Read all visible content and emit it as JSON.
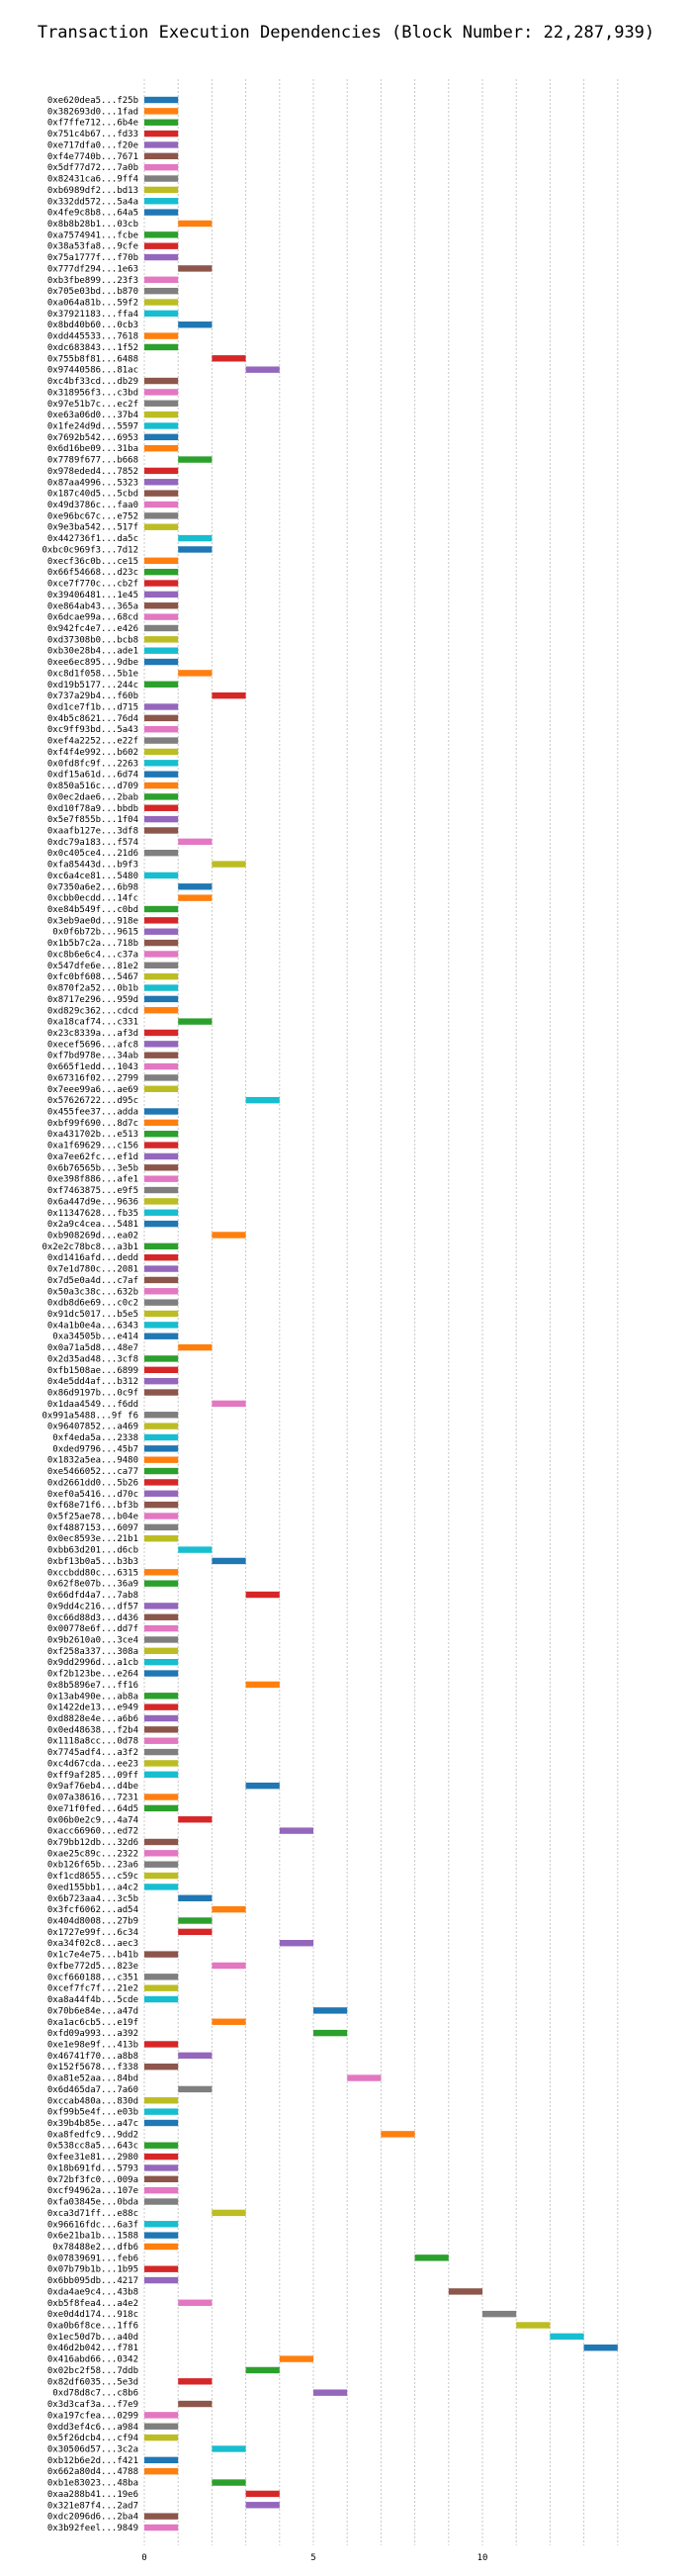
{
  "chart_data": {
    "type": "bar",
    "orientation": "horizontal",
    "title": "Transaction Execution Dependencies (Block Number: 22,287,939)",
    "xlabel": "",
    "ylabel": "",
    "xlim": [
      0,
      14.5
    ],
    "xticks": [
      0,
      5,
      10
    ],
    "grid": "vertical dotted lines at every integer",
    "legend": "none",
    "palette": [
      "#1f77b4",
      "#ff7f0e",
      "#2ca02c",
      "#d62728",
      "#9467bd",
      "#8c564b",
      "#e377c2",
      "#7f7f7f",
      "#bcbd22",
      "#17becf"
    ],
    "rows": [
      [
        "0xe620dea5...f25b",
        0
      ],
      [
        "0x382693d0...1fad",
        0
      ],
      [
        "0xf7ffe712...6b4e",
        0
      ],
      [
        "0x751c4b67...fd33",
        0
      ],
      [
        "0xe717dfa0...f20e",
        0
      ],
      [
        "0xf4e7740b...7671",
        0
      ],
      [
        "0x5df77d72...7a0b",
        0
      ],
      [
        "0x82431ca6...9ff4",
        0
      ],
      [
        "0xb6989df2...bd13",
        0
      ],
      [
        "0x332dd572...5a4a",
        0
      ],
      [
        "0x4fe9c8b8...64a5",
        0
      ],
      [
        "0x8b8b28b1...03cb",
        1
      ],
      [
        "0xa7574941...fcbe",
        0
      ],
      [
        "0x38a53fa8...9cfe",
        0
      ],
      [
        "0x75a1777f...f70b",
        0
      ],
      [
        "0x777df294...1e63",
        1
      ],
      [
        "0xb3fbe899...23f3",
        0
      ],
      [
        "0x705e03bd...b870",
        0
      ],
      [
        "0xa064a81b...59f2",
        0
      ],
      [
        "0x37921183...ffa4",
        0
      ],
      [
        "0x8bd40b60...0cb3",
        1
      ],
      [
        "0xdd445533...7618",
        0
      ],
      [
        "0xdc683843...1f52",
        0
      ],
      [
        "0x755b8f81...6488",
        2
      ],
      [
        "0x97440586...81ac",
        3
      ],
      [
        "0xc4bf33cd...db29",
        0
      ],
      [
        "0x318956f3...c3bd",
        0
      ],
      [
        "0x97e51b7c...ec2f",
        0
      ],
      [
        "0xe63a06d0...37b4",
        0
      ],
      [
        "0x1fe24d9d...5597",
        0
      ],
      [
        "0x7692b542...6953",
        0
      ],
      [
        "0x6d16be09...31ba",
        0
      ],
      [
        "0x7789f677...b668",
        1
      ],
      [
        "0x978eded4...7852",
        0
      ],
      [
        "0x87aa4996...5323",
        0
      ],
      [
        "0x187c40d5...5cbd",
        0
      ],
      [
        "0x49d3786c...faa0",
        0
      ],
      [
        "0xe96bc67c...e752",
        0
      ],
      [
        "0x9e3ba542...517f",
        0
      ],
      [
        "0x442736f1...da5c",
        1
      ],
      [
        "0xbc0c969f3...7d12",
        1
      ],
      [
        "0xecf36c0b...ce15",
        0
      ],
      [
        "0x66f54668...d23c",
        0
      ],
      [
        "0xce7f770c...cb2f",
        0
      ],
      [
        "0x39406481...1e45",
        0
      ],
      [
        "0xe864ab43...365a",
        0
      ],
      [
        "0x6dcae99a...68cd",
        0
      ],
      [
        "0x942fc4e7...e426",
        0
      ],
      [
        "0xd37308b0...bcb8",
        0
      ],
      [
        "0xb30e28b4...ade1",
        0
      ],
      [
        "0xee6ec895...9dbe",
        0
      ],
      [
        "0xc8d1f058...5b1e",
        1
      ],
      [
        "0xd19b5177...244c",
        0
      ],
      [
        "0x737a29b4...f60b",
        2
      ],
      [
        "0xd1ce7f1b...d715",
        0
      ],
      [
        "0x4b5c8621...76d4",
        0
      ],
      [
        "0xc9ff93bd...5a43",
        0
      ],
      [
        "0xef4a2252...e22f",
        0
      ],
      [
        "0xf4f4e992...b602",
        0
      ],
      [
        "0x0fd8fc9f...2263",
        0
      ],
      [
        "0xdf15a61d...6d74",
        0
      ],
      [
        "0x850a516c...d709",
        0
      ],
      [
        "0x0ec2dae6...2bab",
        0
      ],
      [
        "0xd10f78a9...bbdb",
        0
      ],
      [
        "0x5e7f855b...1f04",
        0
      ],
      [
        "0xaafb127e...3df8",
        0
      ],
      [
        "0xdc79a183...f574",
        1
      ],
      [
        "0x0c405ce4...21d6",
        0
      ],
      [
        "0xfa85443d...b9f3",
        2
      ],
      [
        "0xc6a4ce81...5480",
        0
      ],
      [
        "0x7350a6e2...6b98",
        1
      ],
      [
        "0xcbb0ecdd...14fc",
        1
      ],
      [
        "0xe84b549f...c0bd",
        0
      ],
      [
        "0x3eb9ae0d...918e",
        0
      ],
      [
        "0x0f6b72b...9615",
        0
      ],
      [
        "0x1b5b7c2a...718b",
        0
      ],
      [
        "0xc8b6e6c4...c37a",
        0
      ],
      [
        "0x547dfe6e...81e2",
        0
      ],
      [
        "0xfc0bf608...5467",
        0
      ],
      [
        "0x870f2a52...0b1b",
        0
      ],
      [
        "0x8717e296...959d",
        0
      ],
      [
        "0xd829c362...cdcd",
        0
      ],
      [
        "0xa18caf74...c331",
        1
      ],
      [
        "0x23c8339a...af3d",
        0
      ],
      [
        "0xecef5696...afc8",
        0
      ],
      [
        "0xf7bd978e...34ab",
        0
      ],
      [
        "0x665f1edd...1043",
        0
      ],
      [
        "0x67316f02...2799",
        0
      ],
      [
        "0x7eee99a6...ae69",
        0
      ],
      [
        "0x57626722...d95c",
        3
      ],
      [
        "0x455fee37...adda",
        0
      ],
      [
        "0xbf99f690...8d7c",
        0
      ],
      [
        "0xa431702b...e513",
        0
      ],
      [
        "0xa1f69629...c156",
        0
      ],
      [
        "0xa7ee62fc...ef1d",
        0
      ],
      [
        "0x6b76565b...3e5b",
        0
      ],
      [
        "0xe398f886...afe1",
        0
      ],
      [
        "0xf7463875...e9f5",
        0
      ],
      [
        "0x6a447d9e...9636",
        0
      ],
      [
        "0x11347628...fb35",
        0
      ],
      [
        "0x2a9c4cea...5481",
        0
      ],
      [
        "0xb908269d...ea02",
        2
      ],
      [
        "0x2e2c78bc8...a3b1",
        0
      ],
      [
        "0xd1416afd...dedd",
        0
      ],
      [
        "0x7e1d780c...2081",
        0
      ],
      [
        "0x7d5e0a4d...c7af",
        0
      ],
      [
        "0x50a3c38c...632b",
        0
      ],
      [
        "0xdb8d6e69...c0c2",
        0
      ],
      [
        "0x91dc5017...b5e5",
        0
      ],
      [
        "0x4a1b0e4a...6343",
        0
      ],
      [
        "0xa34505b...e414",
        0
      ],
      [
        "0x0a71a5d8...48e7",
        1
      ],
      [
        "0x2d35ad48...3cf8",
        0
      ],
      [
        "0xfb1508ae...6899",
        0
      ],
      [
        "0x4e5dd4af...b312",
        0
      ],
      [
        "0x86d9197b...0c9f",
        0
      ],
      [
        "0x1daa4549...f6dd",
        2
      ],
      [
        "0x991a5488...9f f6",
        0
      ],
      [
        "0x96407852...a469",
        0
      ],
      [
        "0xf4eda5a...2338",
        0
      ],
      [
        "0xded9796...45b7",
        0
      ],
      [
        "0x1832a5ea...9480",
        0
      ],
      [
        "0xe5466052...ca77",
        0
      ],
      [
        "0xd2661dd0...5b26",
        0
      ],
      [
        "0xef0a5416...d70c",
        0
      ],
      [
        "0xf68e71f6...bf3b",
        0
      ],
      [
        "0x5f25ae78...b04e",
        0
      ],
      [
        "0xf4887153...6097",
        0
      ],
      [
        "0x0ec8593e...21b1",
        0
      ],
      [
        "0xbb63d201...d6cb",
        1
      ],
      [
        "0xbf13b0a5...b3b3",
        2
      ],
      [
        "0xccbdd80c...6315",
        0
      ],
      [
        "0x62f8e07b...36a9",
        0
      ],
      [
        "0x66dfd4a7...7ab8",
        3
      ],
      [
        "0x9dd4c216...df57",
        0
      ],
      [
        "0xc66d88d3...d436",
        0
      ],
      [
        "0x00778e6f...dd7f",
        0
      ],
      [
        "0x9b2610a0...3ce4",
        0
      ],
      [
        "0xf258a337...308a",
        0
      ],
      [
        "0x9dd2996d...a1cb",
        0
      ],
      [
        "0xf2b123be...e264",
        0
      ],
      [
        "0x8b5896e7...ff16",
        3
      ],
      [
        "0x13ab490e...ab8a",
        0
      ],
      [
        "0x1422de13...e949",
        0
      ],
      [
        "0xd8828e4e...a6b6",
        0
      ],
      [
        "0x0ed48638...f2b4",
        0
      ],
      [
        "0x1118a8cc...0d78",
        0
      ],
      [
        "0x7745adf4...a3f2",
        0
      ],
      [
        "0xc4d67cda...ee23",
        0
      ],
      [
        "0xff9af285...09ff",
        0
      ],
      [
        "0x9af76eb4...d4be",
        3
      ],
      [
        "0x07a38616...7231",
        0
      ],
      [
        "0xe71f0fed...64d5",
        0
      ],
      [
        "0x06b0e2c9...4a74",
        1
      ],
      [
        "0xacc66960...ed72",
        4
      ],
      [
        "0x79bb12db...32d6",
        0
      ],
      [
        "0xae25c89c...2322",
        0
      ],
      [
        "0xb126f65b...23a6",
        0
      ],
      [
        "0xf1cd8655...c59c",
        0
      ],
      [
        "0xed155bb1...a4c2",
        0
      ],
      [
        "0x6b723aa4...3c5b",
        1
      ],
      [
        "0x3fcf6062...ad54",
        2
      ],
      [
        "0x404d8008...27b9",
        1
      ],
      [
        "0x1727e99f...6c34",
        1
      ],
      [
        "0xa34f02c8...aec3",
        4
      ],
      [
        "0x1c7e4e75...b41b",
        0
      ],
      [
        "0xfbe772d5...823e",
        2
      ],
      [
        "0xcf660188...c351",
        0
      ],
      [
        "0xcef7fc7f...21e2",
        0
      ],
      [
        "0xa8a44f4b...5cde",
        0
      ],
      [
        "0x70b6e84e...a47d",
        5
      ],
      [
        "0xa1ac6cb5...e19f",
        2
      ],
      [
        "0xfd09a993...a392",
        5
      ],
      [
        "0xe1e98e9f...413b",
        0
      ],
      [
        "0x46741f70...a8b8",
        1
      ],
      [
        "0x152f5678...f338",
        0
      ],
      [
        "0xa81e52aa...84bd",
        6
      ],
      [
        "0x6d465da7...7a60",
        1
      ],
      [
        "0xccab480a...830d",
        0
      ],
      [
        "0xf99b5e4f...e03b",
        0
      ],
      [
        "0x39b4b85e...a47c",
        0
      ],
      [
        "0xa8fedfc9...9dd2",
        7
      ],
      [
        "0x538cc8a5...643c",
        0
      ],
      [
        "0xfee31e81...2980",
        0
      ],
      [
        "0x18b691fd...5793",
        0
      ],
      [
        "0x72bf3fc0...009a",
        0
      ],
      [
        "0xcf94962a...107e",
        0
      ],
      [
        "0xfa03845e...0bda",
        0
      ],
      [
        "0xca3d71ff...e88c",
        2
      ],
      [
        "0x96616fdc...6a3f",
        0
      ],
      [
        "0x6e21ba1b...1588",
        0
      ],
      [
        "0x78488e2...dfb6",
        0
      ],
      [
        "0x07839691...feb6",
        8
      ],
      [
        "0x07b79b1b...1b95",
        0
      ],
      [
        "0x6bb095db...4217",
        0
      ],
      [
        "0xda4ae9c4...43b8",
        9
      ],
      [
        "0xb5f8fea4...a4e2",
        1
      ],
      [
        "0xe0d4d174...918c",
        10
      ],
      [
        "0xa0b6f8ce...1ff6",
        11
      ],
      [
        "0x1ec50d7b...a40d",
        12
      ],
      [
        "0x46d2b042...f781",
        13
      ],
      [
        "0x416abd66...0342",
        4
      ],
      [
        "0x02bc2f58...7ddb",
        3
      ],
      [
        "0x82df6035...5e3d",
        1
      ],
      [
        "0xd78d8c7...c8b6",
        5
      ],
      [
        "0x3d3caf3a...f7e9",
        1
      ],
      [
        "0xa197cfea...0299",
        0
      ],
      [
        "0xdd3ef4c6...a984",
        0
      ],
      [
        "0x5f26dcb4...cf94",
        0
      ],
      [
        "0x30506d57...3c2a",
        2
      ],
      [
        "0xb12b6e2d...f421",
        0
      ],
      [
        "0x662a80d4...4788",
        0
      ],
      [
        "0xb1e83023...48ba",
        2
      ],
      [
        "0xaa288b41...19e6",
        3
      ],
      [
        "0x321e87f4...2ad7",
        3
      ],
      [
        "0xdc2096d6...2ba4",
        0
      ],
      [
        "0x3b92feel...9849",
        0
      ]
    ]
  }
}
